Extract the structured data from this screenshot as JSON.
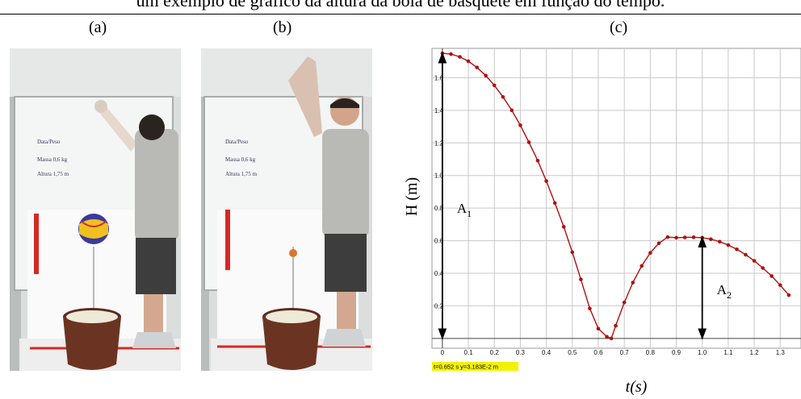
{
  "figure": {
    "caption": "um exemplo de gráfico da altura da bola de basquete em função do tempo.",
    "panel_labels": [
      "(a)",
      "(b)",
      "(c)"
    ],
    "photo_a": {
      "board_note_lines": [
        "Data/Peso",
        "Massa 0,6 kg",
        "Altura 1,75 m"
      ]
    },
    "photo_b": {
      "board_note_lines": [
        "Data/Peso",
        "Massa 0,6 kg",
        "Altura 1,75 m"
      ]
    }
  },
  "chart_data": {
    "type": "scatter",
    "title": "",
    "xlabel": "t(s)",
    "ylabel": "H (m)",
    "xlim": [
      -0.04,
      1.38
    ],
    "ylim": [
      -0.06,
      1.78
    ],
    "x_ticks": [
      "0",
      "0.1",
      "0.2",
      "0.3",
      "0.4",
      "0.5",
      "0.6",
      "0.7",
      "0.8",
      "0.9",
      "1.0",
      "1.1",
      "1.2",
      "1.3"
    ],
    "y_ticks": [
      "0.2",
      "0.4",
      "0.6",
      "0.8",
      "1.0",
      "1.2",
      "1.4",
      "1.6"
    ],
    "grid": true,
    "series": [
      {
        "color": "#b01010",
        "x": [
          0.0,
          0.033,
          0.067,
          0.1,
          0.133,
          0.167,
          0.2,
          0.233,
          0.267,
          0.3,
          0.333,
          0.367,
          0.4,
          0.433,
          0.467,
          0.5,
          0.533,
          0.567,
          0.6,
          0.633,
          0.65,
          0.667,
          0.7,
          0.733,
          0.767,
          0.8,
          0.833,
          0.867,
          0.9,
          0.933,
          0.967,
          1.0,
          1.033,
          1.067,
          1.1,
          1.133,
          1.167,
          1.2,
          1.233,
          1.267,
          1.3,
          1.333
        ],
        "y": [
          1.75,
          1.745,
          1.728,
          1.701,
          1.663,
          1.613,
          1.553,
          1.482,
          1.4,
          1.308,
          1.204,
          1.091,
          0.966,
          0.831,
          0.685,
          0.529,
          0.362,
          0.184,
          0.06,
          0.01,
          0.0,
          0.078,
          0.221,
          0.343,
          0.445,
          0.525,
          0.584,
          0.622,
          0.618,
          0.62,
          0.621,
          0.618,
          0.609,
          0.594,
          0.573,
          0.547,
          0.514,
          0.476,
          0.432,
          0.383,
          0.327,
          0.266
        ]
      }
    ],
    "annotations": [
      {
        "text": "A",
        "sub": "1",
        "kind": "vertical-arrow",
        "x": 0.0,
        "y_from": 0.0,
        "y_to": 1.75
      },
      {
        "text": "A",
        "sub": "2",
        "kind": "vertical-arrow",
        "x": 1.0,
        "y_from": 0.0,
        "y_to": 0.62
      }
    ],
    "readout": "t=0.652 s  y=3.183E-2 m",
    "readout_color": "#f2f200"
  }
}
